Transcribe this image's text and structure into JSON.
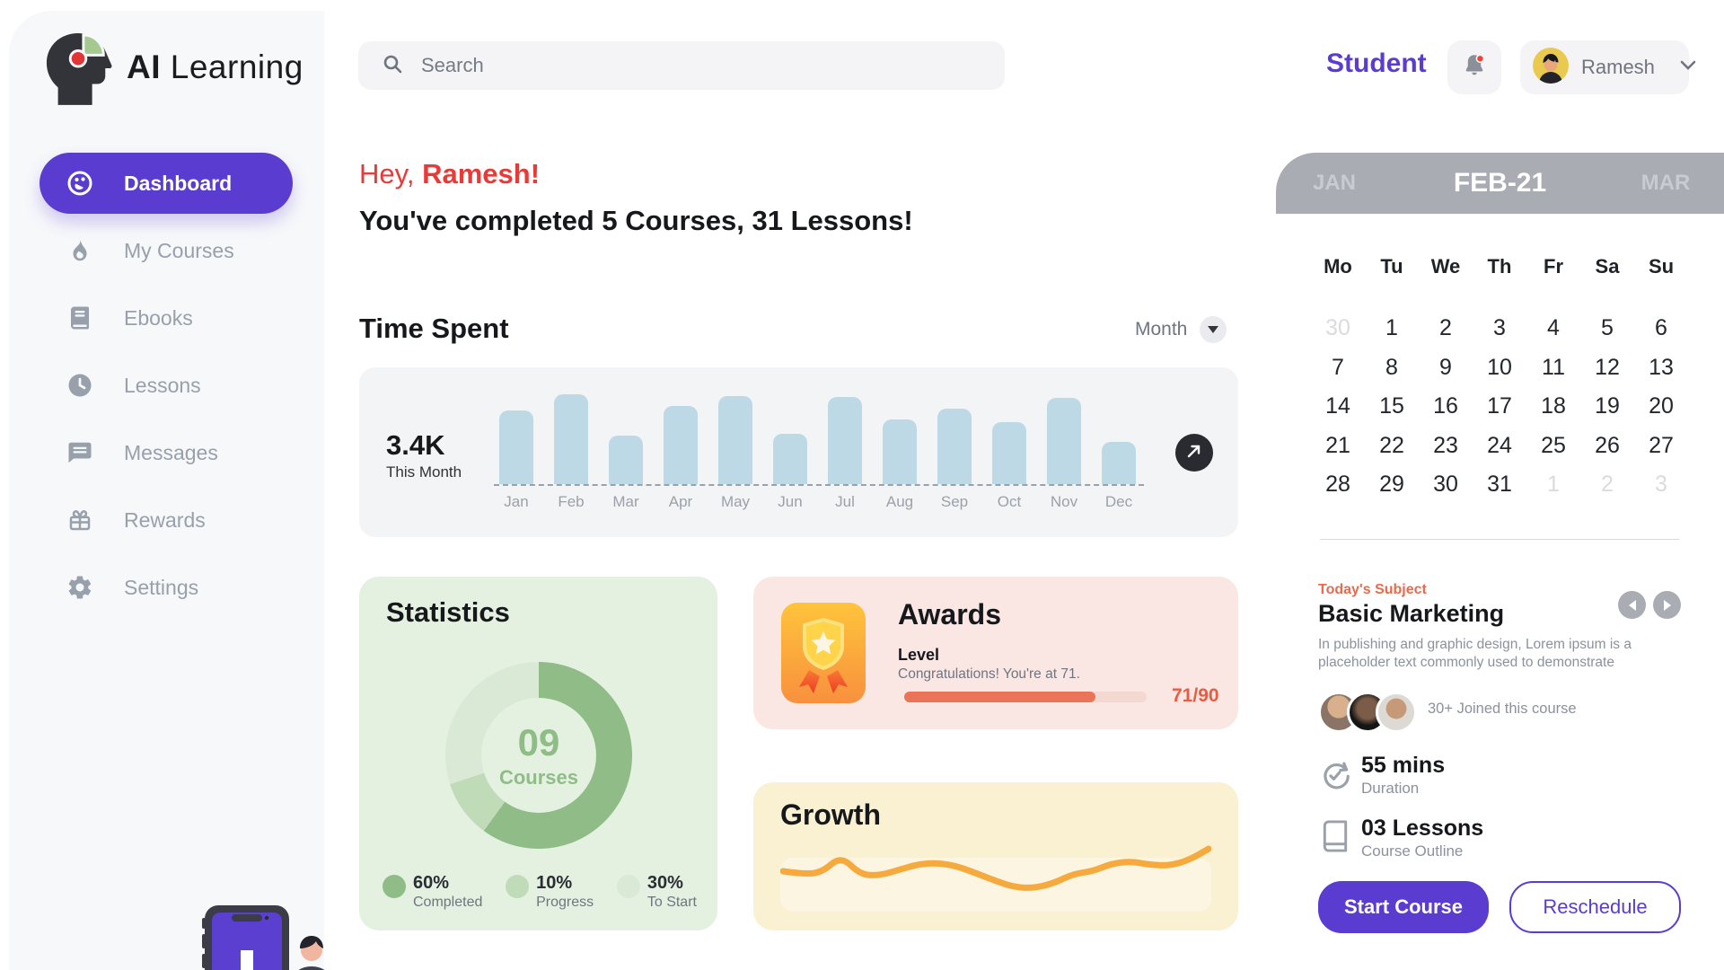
{
  "app": {
    "name_bold": "AI",
    "name_rest": "Learning"
  },
  "header": {
    "search_placeholder": "Search",
    "role_label": "Student",
    "user_name": "Ramesh",
    "notification": "unread-dot"
  },
  "sidebar": {
    "items": [
      {
        "label": "Dashboard",
        "icon": "dashboard",
        "active": true
      },
      {
        "label": "My Courses",
        "icon": "flame",
        "active": false
      },
      {
        "label": "Ebooks",
        "icon": "book",
        "active": false
      },
      {
        "label": "Lessons",
        "icon": "clock",
        "active": false
      },
      {
        "label": "Messages",
        "icon": "chat",
        "active": false
      },
      {
        "label": "Rewards",
        "icon": "gift",
        "active": false
      },
      {
        "label": "Settings",
        "icon": "gear",
        "active": false
      }
    ]
  },
  "greeting": {
    "salutation": "Hey,",
    "name": "Ramesh!",
    "message": "You've completed 5 Courses, 31 Lessons!"
  },
  "time_spent": {
    "title": "Time Spent",
    "filter_label": "Month",
    "total": "3.4K",
    "total_caption": "This Month"
  },
  "chart_data": [
    {
      "id": "time-spent",
      "type": "bar",
      "title": "Time Spent",
      "categories": [
        "Jan",
        "Feb",
        "Mar",
        "Apr",
        "May",
        "Jun",
        "Jul",
        "Aug",
        "Sep",
        "Oct",
        "Nov",
        "Dec"
      ],
      "values": [
        82,
        100,
        54,
        87,
        98,
        56,
        97,
        72,
        84,
        69,
        96,
        47
      ],
      "ylabel": "",
      "axis_note": "no numeric axis shown; values are relative bar heights (% of max)",
      "annotation": "3.4K This Month",
      "bar_color": "#BDD9E6",
      "grid": false
    },
    {
      "id": "statistics-donut",
      "type": "pie",
      "title": "Statistics",
      "center_value": "09",
      "center_label": "Courses",
      "segments": [
        {
          "label": "Completed",
          "value": 60,
          "color": "#8FBC87"
        },
        {
          "label": "Progress",
          "value": 10,
          "color": "#BFDBB7"
        },
        {
          "label": "To Start",
          "value": 30,
          "color": "#DAE9D5"
        }
      ],
      "legend_position": "bottom"
    },
    {
      "id": "growth-line",
      "type": "line",
      "title": "Growth",
      "values": [
        50,
        46,
        48,
        72,
        45,
        44,
        52,
        60,
        62,
        57,
        47,
        36,
        27,
        26,
        33,
        46,
        50,
        61,
        64,
        59,
        58,
        66,
        82
      ],
      "axis_note": "decorative sparkline, no axes or labels",
      "line_color": "#F6A93C"
    }
  ],
  "statistics": {
    "title": "Statistics"
  },
  "awards": {
    "title": "Awards",
    "level_label": "Level",
    "congrats": "Congratulations! You're at 71.",
    "progress_value": 71,
    "progress_max": 90,
    "progress_label": "71/90"
  },
  "growth": {
    "title": "Growth"
  },
  "calendar": {
    "prev_month": "JAN",
    "current_month": "FEB-21",
    "next_month": "MAR",
    "weekdays": [
      "Mo",
      "Tu",
      "We",
      "Th",
      "Fr",
      "Sa",
      "Su"
    ],
    "days": [
      {
        "v": "30",
        "muted": true
      },
      {
        "v": "1"
      },
      {
        "v": "2"
      },
      {
        "v": "3"
      },
      {
        "v": "4"
      },
      {
        "v": "5"
      },
      {
        "v": "6"
      },
      {
        "v": "7"
      },
      {
        "v": "8"
      },
      {
        "v": "9"
      },
      {
        "v": "10"
      },
      {
        "v": "11"
      },
      {
        "v": "12"
      },
      {
        "v": "13"
      },
      {
        "v": "14"
      },
      {
        "v": "15"
      },
      {
        "v": "16"
      },
      {
        "v": "17"
      },
      {
        "v": "18"
      },
      {
        "v": "19"
      },
      {
        "v": "20"
      },
      {
        "v": "21"
      },
      {
        "v": "22"
      },
      {
        "v": "23"
      },
      {
        "v": "24"
      },
      {
        "v": "25"
      },
      {
        "v": "26"
      },
      {
        "v": "27"
      },
      {
        "v": "28"
      },
      {
        "v": "29"
      },
      {
        "v": "30"
      },
      {
        "v": "31"
      },
      {
        "v": "1",
        "muted": true
      },
      {
        "v": "2",
        "muted": true
      },
      {
        "v": "3",
        "muted": true
      }
    ]
  },
  "today": {
    "label": "Today's Subject",
    "title": "Basic Marketing",
    "description": "In publishing and graphic design, Lorem ipsum is a placeholder text commonly used to demonstrate",
    "joined": "30+ Joined this course",
    "duration_value": "55 mins",
    "duration_label": "Duration",
    "lessons_value": "03 Lessons",
    "lessons_label": "Course Outline",
    "start_button": "Start Course",
    "reschedule_button": "Reschedule"
  },
  "colors": {
    "accent_purple": "#5B3CD0",
    "accent_red": "#EA3A38",
    "bar_blue": "#BDD9E6",
    "stat_green": "#8FBC87",
    "progress_orange": "#E97458",
    "line_orange": "#F6A93C",
    "calendar_gray": "#A9ACB3"
  }
}
